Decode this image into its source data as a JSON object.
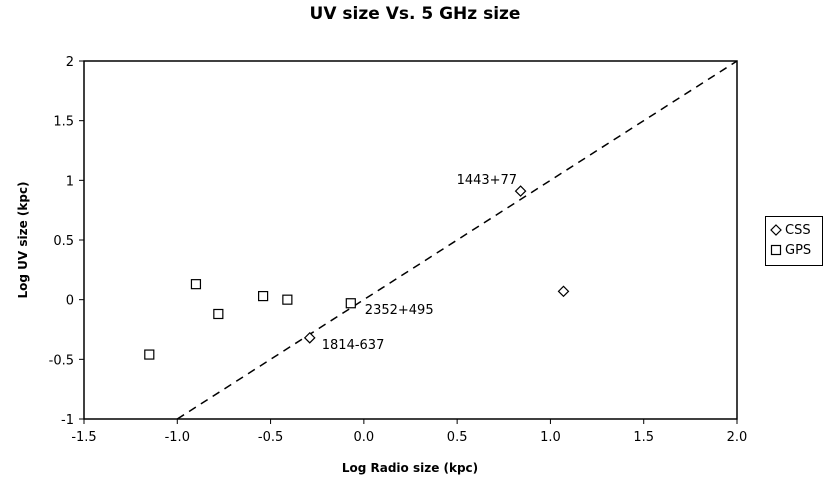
{
  "chart_data": {
    "type": "scatter",
    "title": "UV size Vs. 5 GHz size",
    "xlabel": "Log Radio size (kpc)",
    "ylabel": "Log UV size (kpc)",
    "xlim": [
      -1.5,
      2.0
    ],
    "ylim": [
      -1,
      2
    ],
    "x_ticks": [
      -1.5,
      -1.0,
      -0.5,
      0.0,
      0.5,
      1.0,
      1.5,
      2.0
    ],
    "x_tick_labels": [
      "-1.5",
      "-1.0",
      "-0.5",
      "0.0",
      "0.5",
      "1.0",
      "1.5",
      "2.0"
    ],
    "y_ticks": [
      -1,
      -0.5,
      0,
      0.5,
      1,
      1.5,
      2
    ],
    "y_tick_labels": [
      "-1",
      "-0.5",
      "0",
      "0.5",
      "1",
      "1.5",
      "2"
    ],
    "grid": false,
    "legend_position": "right",
    "series": [
      {
        "name": "CSS",
        "marker": "diamond",
        "x": [
          0.84,
          1.07,
          -0.29
        ],
        "y": [
          0.91,
          0.07,
          -0.32
        ]
      },
      {
        "name": "GPS",
        "marker": "square",
        "x": [
          -1.15,
          -0.9,
          -0.78,
          -0.54,
          -0.41,
          -0.07
        ],
        "y": [
          -0.46,
          0.13,
          -0.12,
          0.03,
          0.0,
          -0.03
        ]
      }
    ],
    "reference_line": {
      "style": "dashed",
      "x": [
        -1.0,
        2.0
      ],
      "y": [
        -1.0,
        2.0
      ]
    },
    "annotations": [
      {
        "text": "1443+77",
        "x": 0.84,
        "y": 0.91
      },
      {
        "text": "2352+495",
        "x": -0.07,
        "y": -0.03
      },
      {
        "text": "1814-637",
        "x": -0.29,
        "y": -0.32
      }
    ]
  }
}
